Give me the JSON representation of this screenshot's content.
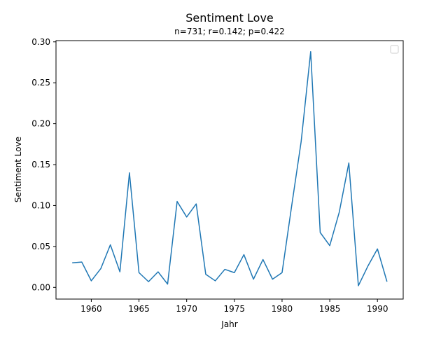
{
  "chart_data": {
    "type": "line",
    "title": "Sentiment Love",
    "subtitle": "n=731; r=0.142; p=0.422",
    "xlabel": "Jahr",
    "ylabel": "Sentiment Love",
    "xlim": [
      1956.3,
      1992.7
    ],
    "ylim": [
      -0.0143,
      0.3015
    ],
    "x_ticks": [
      1960,
      1965,
      1970,
      1975,
      1980,
      1985,
      1990
    ],
    "y_ticks": [
      0.0,
      0.05,
      0.1,
      0.15,
      0.2,
      0.25,
      0.3
    ],
    "x_tick_labels": [
      "1960",
      "1965",
      "1970",
      "1975",
      "1980",
      "1985",
      "1990"
    ],
    "y_tick_labels": [
      "0.00",
      "0.05",
      "0.10",
      "0.15",
      "0.20",
      "0.25",
      "0.30"
    ],
    "grid": false,
    "legend": "top-right",
    "series": [
      {
        "color": "#1f77b4",
        "x": [
          1958,
          1959,
          1960,
          1961,
          1962,
          1963,
          1964,
          1965,
          1966,
          1967,
          1968,
          1969,
          1970,
          1971,
          1972,
          1973,
          1974,
          1975,
          1976,
          1977,
          1978,
          1979,
          1980,
          1981,
          1982,
          1983,
          1984,
          1985,
          1986,
          1987,
          1988,
          1989,
          1990,
          1991
        ],
        "values": [
          0.03,
          0.031,
          0.008,
          0.023,
          0.052,
          0.019,
          0.14,
          0.018,
          0.007,
          0.019,
          0.004,
          0.105,
          0.086,
          0.102,
          0.016,
          0.008,
          0.022,
          0.018,
          0.04,
          0.01,
          0.034,
          0.01,
          0.018,
          0.099,
          0.178,
          0.288,
          0.067,
          0.051,
          0.092,
          0.152,
          0.002,
          0.026,
          0.047,
          0.007
        ]
      }
    ]
  }
}
